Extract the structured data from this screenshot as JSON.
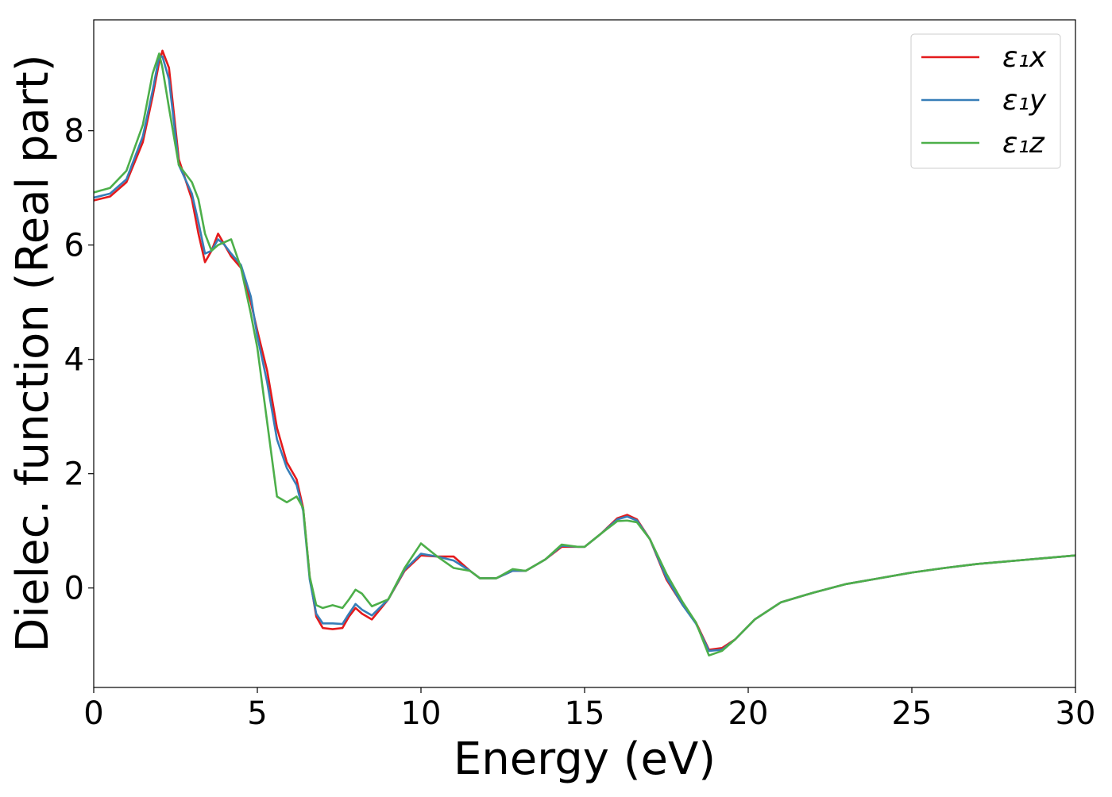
{
  "chart_data": {
    "type": "line",
    "xlabel": "Energy (eV)",
    "ylabel": "Dielec. function (Real part)",
    "x": [
      0,
      0.5,
      1,
      1.5,
      1.8,
      2,
      2.1,
      2.3,
      2.6,
      3,
      3.2,
      3.4,
      3.6,
      3.8,
      4,
      4.2,
      4.5,
      4.8,
      5,
      5.3,
      5.6,
      5.9,
      6.2,
      6.4,
      6.6,
      6.8,
      7,
      7.3,
      7.6,
      7.8,
      8,
      8.2,
      8.5,
      9,
      9.5,
      10,
      10.5,
      11,
      11.5,
      11.8,
      12.3,
      12.8,
      13.2,
      13.8,
      14.3,
      14.8,
      15,
      15.5,
      16,
      16.3,
      16.6,
      17,
      17.5,
      18,
      18.4,
      18.8,
      19.2,
      19.6,
      20.2,
      21,
      22,
      23,
      24,
      25,
      26,
      27,
      28,
      29,
      30
    ],
    "series": [
      {
        "name": "ε₁x",
        "color": "#e41a1c",
        "values": [
          6.78,
          6.85,
          7.1,
          7.8,
          8.6,
          9.2,
          9.4,
          9.1,
          7.5,
          6.8,
          6.2,
          5.7,
          5.9,
          6.2,
          6.0,
          5.8,
          5.6,
          5.0,
          4.5,
          3.8,
          2.8,
          2.2,
          1.9,
          1.4,
          0.2,
          -0.5,
          -0.7,
          -0.72,
          -0.7,
          -0.5,
          -0.35,
          -0.45,
          -0.55,
          -0.2,
          0.3,
          0.57,
          0.55,
          0.55,
          0.3,
          0.17,
          0.17,
          0.3,
          0.3,
          0.5,
          0.72,
          0.72,
          0.72,
          0.95,
          1.22,
          1.28,
          1.2,
          0.85,
          0.15,
          -0.3,
          -0.6,
          -1.08,
          -1.05,
          -0.9,
          -0.55,
          -0.25,
          -0.08,
          0.07,
          0.17,
          0.27,
          0.35,
          0.42,
          0.47,
          0.52,
          0.57
        ]
      },
      {
        "name": "ε₁y",
        "color": "#377eb8",
        "values": [
          6.83,
          6.9,
          7.15,
          7.9,
          8.7,
          9.3,
          9.3,
          8.9,
          7.4,
          6.9,
          6.4,
          5.85,
          5.9,
          6.1,
          6.0,
          5.85,
          5.65,
          5.1,
          4.4,
          3.6,
          2.6,
          2.1,
          1.8,
          1.35,
          0.15,
          -0.45,
          -0.62,
          -0.62,
          -0.63,
          -0.45,
          -0.28,
          -0.38,
          -0.48,
          -0.2,
          0.32,
          0.6,
          0.55,
          0.48,
          0.3,
          0.17,
          0.17,
          0.3,
          0.3,
          0.5,
          0.74,
          0.72,
          0.72,
          0.95,
          1.2,
          1.25,
          1.18,
          0.85,
          0.18,
          -0.3,
          -0.62,
          -1.1,
          -1.08,
          -0.9,
          -0.55,
          -0.25,
          -0.08,
          0.07,
          0.17,
          0.27,
          0.35,
          0.42,
          0.47,
          0.52,
          0.57
        ]
      },
      {
        "name": "ε₁z",
        "color": "#4daf4a",
        "values": [
          6.92,
          7.0,
          7.3,
          8.1,
          9.0,
          9.35,
          9.1,
          8.4,
          7.4,
          7.1,
          6.8,
          6.2,
          5.9,
          6.0,
          6.05,
          6.1,
          5.6,
          4.8,
          4.2,
          2.9,
          1.6,
          1.5,
          1.6,
          1.4,
          0.2,
          -0.3,
          -0.35,
          -0.3,
          -0.35,
          -0.2,
          -0.03,
          -0.1,
          -0.32,
          -0.2,
          0.35,
          0.78,
          0.55,
          0.35,
          0.3,
          0.17,
          0.17,
          0.33,
          0.3,
          0.5,
          0.76,
          0.72,
          0.72,
          0.95,
          1.17,
          1.18,
          1.15,
          0.85,
          0.25,
          -0.25,
          -0.6,
          -1.18,
          -1.1,
          -0.9,
          -0.55,
          -0.25,
          -0.08,
          0.07,
          0.17,
          0.27,
          0.35,
          0.42,
          0.47,
          0.52,
          0.57
        ]
      }
    ],
    "xlim": [
      0,
      30
    ],
    "xticks": [
      0,
      5,
      10,
      15,
      20,
      25,
      30
    ],
    "ylim": [
      -1.74,
      9.94
    ],
    "yticks": [
      0,
      2,
      4,
      6,
      8
    ],
    "grid": false,
    "legend": "upper right"
  }
}
